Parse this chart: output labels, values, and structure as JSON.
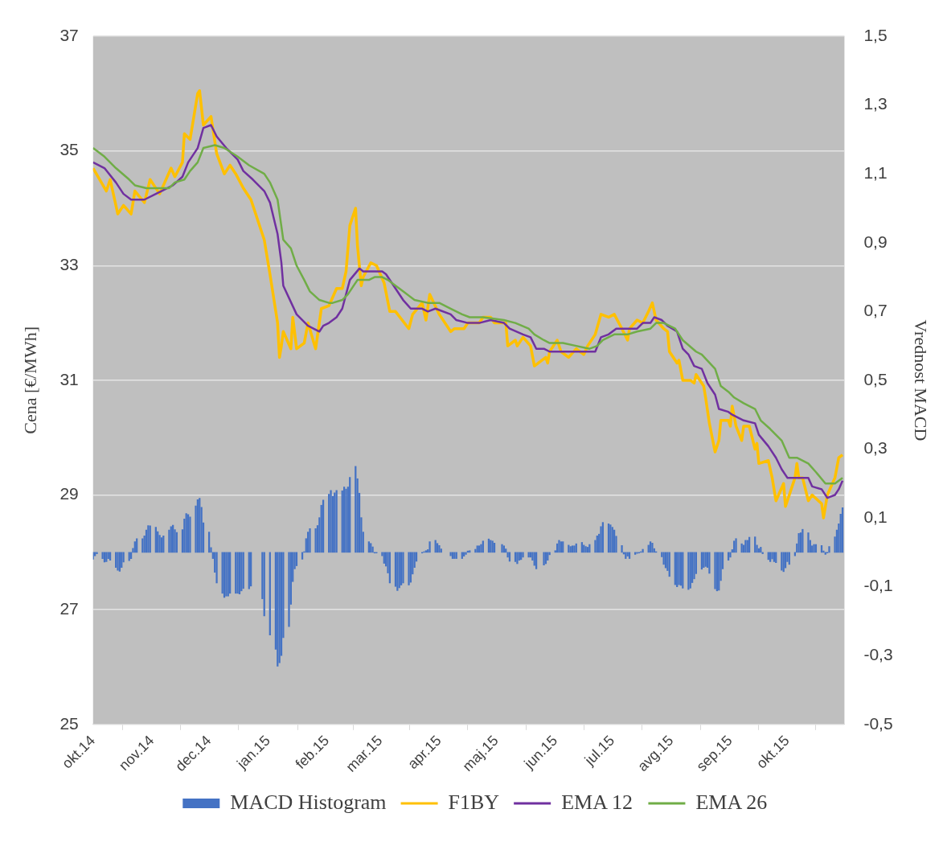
{
  "chart_data": {
    "type": "line",
    "xlabel": null,
    "ylabel": "Cena [€/MWh]",
    "y2label": "Vrednost MACD",
    "xlim": [
      "2014-10-01",
      "2015-10-31"
    ],
    "xticks": [
      {
        "value": "2014-10-01",
        "label": "okt.14"
      },
      {
        "value": "2014-11-01",
        "label": "nov.14"
      },
      {
        "value": "2014-12-01",
        "label": "dec.14"
      },
      {
        "value": "2015-01-01",
        "label": "jan.15"
      },
      {
        "value": "2015-02-01",
        "label": "feb.15"
      },
      {
        "value": "2015-03-01",
        "label": "mar.15"
      },
      {
        "value": "2015-04-01",
        "label": "apr.15"
      },
      {
        "value": "2015-05-01",
        "label": "maj.15"
      },
      {
        "value": "2015-06-01",
        "label": "jun.15"
      },
      {
        "value": "2015-07-01",
        "label": "jul.15"
      },
      {
        "value": "2015-08-01",
        "label": "avg.15"
      },
      {
        "value": "2015-09-01",
        "label": "sep.15"
      },
      {
        "value": "2015-10-01",
        "label": "okt.15"
      }
    ],
    "ylim": [
      25,
      37
    ],
    "yticks": [
      25,
      27,
      29,
      31,
      33,
      35,
      37
    ],
    "y2lim": [
      -0.5,
      1.5
    ],
    "y2ticks": [
      {
        "value": -0.5,
        "label": "-0,5"
      },
      {
        "value": -0.3,
        "label": "-0,3"
      },
      {
        "value": -0.1,
        "label": "-0,1"
      },
      {
        "value": 0.1,
        "label": "0,1"
      },
      {
        "value": 0.3,
        "label": "0,3"
      },
      {
        "value": 0.5,
        "label": "0,5"
      },
      {
        "value": 0.7,
        "label": "0,7"
      },
      {
        "value": 0.9,
        "label": "0,9"
      },
      {
        "value": 1.1,
        "label": "1,1"
      },
      {
        "value": 1.3,
        "label": "1,3"
      },
      {
        "value": 1.5,
        "label": "1,5"
      }
    ],
    "grid": "y",
    "legend": "bottom",
    "series": [
      {
        "name": "MACD Histogram",
        "type": "bar",
        "axis": "y2",
        "color": "#4472c4",
        "x": [
          "2014-10-01",
          "2014-10-02",
          "2014-10-03",
          "2014-10-06",
          "2014-10-07",
          "2014-10-08",
          "2014-10-09",
          "2014-10-10",
          "2014-10-13",
          "2014-10-14",
          "2014-10-15",
          "2014-10-16",
          "2014-10-17",
          "2014-10-20",
          "2014-10-21",
          "2014-10-22",
          "2014-10-23",
          "2014-10-24",
          "2014-10-27",
          "2014-10-28",
          "2014-10-29",
          "2014-10-30",
          "2014-10-31",
          "2014-11-03",
          "2014-11-04",
          "2014-11-05",
          "2014-11-06",
          "2014-11-07",
          "2014-11-10",
          "2014-11-11",
          "2014-11-12",
          "2014-11-13",
          "2014-11-14",
          "2014-11-17",
          "2014-11-18",
          "2014-11-19",
          "2014-11-20",
          "2014-11-21",
          "2014-11-24",
          "2014-11-25",
          "2014-11-26",
          "2014-11-27",
          "2014-11-28",
          "2014-12-01",
          "2014-12-02",
          "2014-12-03",
          "2014-12-04",
          "2014-12-05",
          "2014-12-08",
          "2014-12-09",
          "2014-12-10",
          "2014-12-11",
          "2014-12-12",
          "2014-12-15",
          "2014-12-16",
          "2014-12-17",
          "2014-12-18",
          "2014-12-19",
          "2014-12-22",
          "2014-12-23",
          "2014-12-29",
          "2014-12-30",
          "2015-01-02",
          "2015-01-05",
          "2015-01-06",
          "2015-01-07",
          "2015-01-08",
          "2015-01-09",
          "2015-01-12",
          "2015-01-13",
          "2015-01-14",
          "2015-01-15",
          "2015-01-16",
          "2015-01-19",
          "2015-01-20",
          "2015-01-21",
          "2015-01-22",
          "2015-01-23",
          "2015-01-26",
          "2015-01-27",
          "2015-01-28",
          "2015-01-29",
          "2015-01-30",
          "2015-02-02",
          "2015-02-03",
          "2015-02-04",
          "2015-02-05",
          "2015-02-06",
          "2015-02-09",
          "2015-02-10",
          "2015-02-11",
          "2015-02-12",
          "2015-02-13",
          "2015-02-16",
          "2015-02-17",
          "2015-02-18",
          "2015-02-19",
          "2015-02-20",
          "2015-02-23",
          "2015-02-24",
          "2015-02-25",
          "2015-02-26",
          "2015-02-27",
          "2015-03-02",
          "2015-03-03",
          "2015-03-04",
          "2015-03-05",
          "2015-03-06",
          "2015-03-09",
          "2015-03-10",
          "2015-03-11",
          "2015-03-12",
          "2015-03-13",
          "2015-03-16",
          "2015-03-17",
          "2015-03-18",
          "2015-03-19",
          "2015-03-20",
          "2015-03-23",
          "2015-03-24",
          "2015-03-25",
          "2015-03-26",
          "2015-03-27",
          "2015-03-30",
          "2015-03-31",
          "2015-04-01",
          "2015-04-02",
          "2015-04-07",
          "2015-04-08",
          "2015-04-09",
          "2015-04-10",
          "2015-04-13",
          "2015-04-14",
          "2015-04-15",
          "2015-04-16",
          "2015-04-17",
          "2015-04-20",
          "2015-04-21",
          "2015-04-22",
          "2015-04-23",
          "2015-04-24",
          "2015-04-27",
          "2015-04-28",
          "2015-04-29",
          "2015-04-30",
          "2015-05-04",
          "2015-05-05",
          "2015-05-06",
          "2015-05-07",
          "2015-05-08",
          "2015-05-11",
          "2015-05-12",
          "2015-05-13",
          "2015-05-14",
          "2015-05-15",
          "2015-05-18",
          "2015-05-19",
          "2015-05-20",
          "2015-05-21",
          "2015-05-22",
          "2015-05-26",
          "2015-05-27",
          "2015-05-28",
          "2015-05-29",
          "2015-06-01",
          "2015-06-02",
          "2015-06-03",
          "2015-06-04",
          "2015-06-05",
          "2015-06-08",
          "2015-06-09",
          "2015-06-10",
          "2015-06-11",
          "2015-06-12",
          "2015-06-15",
          "2015-06-16",
          "2015-06-17",
          "2015-06-18",
          "2015-06-19",
          "2015-06-22",
          "2015-06-23",
          "2015-06-24",
          "2015-06-25",
          "2015-06-26",
          "2015-06-29",
          "2015-06-30",
          "2015-07-01",
          "2015-07-02",
          "2015-07-03",
          "2015-07-06",
          "2015-07-07",
          "2015-07-08",
          "2015-07-09",
          "2015-07-10",
          "2015-07-13",
          "2015-07-14",
          "2015-07-15",
          "2015-07-16",
          "2015-07-17",
          "2015-07-20",
          "2015-07-21",
          "2015-07-22",
          "2015-07-23",
          "2015-07-24",
          "2015-07-27",
          "2015-07-28",
          "2015-07-29",
          "2015-07-30",
          "2015-07-31",
          "2015-08-03",
          "2015-08-04",
          "2015-08-05",
          "2015-08-06",
          "2015-08-07",
          "2015-08-10",
          "2015-08-11",
          "2015-08-12",
          "2015-08-13",
          "2015-08-14",
          "2015-08-17",
          "2015-08-18",
          "2015-08-19",
          "2015-08-20",
          "2015-08-21",
          "2015-08-24",
          "2015-08-25",
          "2015-08-26",
          "2015-08-27",
          "2015-08-28",
          "2015-08-31",
          "2015-09-01",
          "2015-09-02",
          "2015-09-03",
          "2015-09-04",
          "2015-09-07",
          "2015-09-08",
          "2015-09-09",
          "2015-09-10",
          "2015-09-11",
          "2015-09-14",
          "2015-09-15",
          "2015-09-16",
          "2015-09-17",
          "2015-09-18",
          "2015-09-21",
          "2015-09-22",
          "2015-09-23",
          "2015-09-24",
          "2015-09-25",
          "2015-09-28",
          "2015-09-29",
          "2015-09-30",
          "2015-10-01",
          "2015-10-02",
          "2015-10-05",
          "2015-10-06",
          "2015-10-07",
          "2015-10-08",
          "2015-10-09",
          "2015-10-12",
          "2015-10-13",
          "2015-10-14",
          "2015-10-15",
          "2015-10-16",
          "2015-10-19",
          "2015-10-20",
          "2015-10-21",
          "2015-10-22",
          "2015-10-23",
          "2015-10-26",
          "2015-10-27",
          "2015-10-28",
          "2015-10-29",
          "2015-10-30"
        ],
        "values": [
          -0.02,
          -0.01,
          -0.004,
          -0.018,
          -0.028,
          -0.027,
          -0.018,
          -0.023,
          -0.044,
          -0.052,
          -0.055,
          -0.044,
          -0.028,
          -0.024,
          -0.018,
          0.012,
          0.031,
          0.04,
          0.04,
          0.048,
          0.065,
          0.078,
          0.077,
          0.073,
          0.06,
          0.05,
          0.043,
          0.048,
          0.065,
          0.075,
          0.079,
          0.066,
          0.058,
          0.066,
          0.097,
          0.113,
          0.11,
          0.103,
          0.135,
          0.153,
          0.157,
          0.131,
          0.086,
          0.059,
          0.014,
          -0.018,
          -0.058,
          -0.089,
          -0.119,
          -0.131,
          -0.127,
          -0.127,
          -0.119,
          -0.119,
          -0.119,
          -0.121,
          -0.112,
          -0.105,
          -0.106,
          -0.098,
          -0.135,
          -0.185,
          -0.24,
          -0.282,
          -0.331,
          -0.321,
          -0.3,
          -0.248,
          -0.216,
          -0.151,
          -0.085,
          -0.048,
          -0.039,
          -0.02,
          0.002,
          0.04,
          0.059,
          0.069,
          0.069,
          0.078,
          0.101,
          0.137,
          0.152,
          0.169,
          0.18,
          0.163,
          0.173,
          0.18,
          0.179,
          0.19,
          0.184,
          0.19,
          0.218,
          0.25,
          0.214,
          0.172,
          0.101,
          0.059,
          0.031,
          0.026,
          0.016,
          -0.002,
          -0.002,
          -0.01,
          -0.032,
          -0.04,
          -0.06,
          -0.089,
          -0.099,
          -0.111,
          -0.103,
          -0.095,
          -0.089,
          -0.095,
          -0.087,
          -0.063,
          -0.044,
          -0.026,
          -0.002,
          0.002,
          0.005,
          0.008,
          0.031,
          0.035,
          0.026,
          0.02,
          0.01,
          -0.01,
          -0.018,
          -0.018,
          -0.018,
          -0.018,
          -0.011,
          -0.006,
          0.004,
          0.005,
          0.009,
          0.019,
          0.019,
          0.023,
          0.033,
          0.039,
          0.035,
          0.033,
          0.027,
          0.023,
          0.019,
          0.01,
          -0.014,
          -0.026,
          -0.027,
          -0.033,
          -0.023,
          -0.021,
          -0.014,
          -0.014,
          -0.014,
          -0.023,
          -0.038,
          -0.048,
          -0.037,
          -0.033,
          -0.023,
          -0.007,
          0.005,
          0.025,
          0.035,
          0.031,
          0.031,
          0.021,
          0.017,
          0.019,
          0.019,
          0.025,
          0.029,
          0.021,
          0.017,
          0.015,
          0.023,
          0.035,
          0.048,
          0.053,
          0.075,
          0.087,
          0.083,
          0.08,
          0.073,
          0.065,
          0.047,
          0.02,
          -0.005,
          -0.018,
          -0.011,
          -0.018,
          -0.006,
          -0.003,
          -0.002,
          0.002,
          0.009,
          0.021,
          0.031,
          0.027,
          0.011,
          0.002,
          -0.013,
          -0.035,
          -0.045,
          -0.053,
          -0.07,
          -0.094,
          -0.1,
          -0.094,
          -0.096,
          -0.104,
          -0.108,
          -0.104,
          -0.088,
          -0.077,
          -0.062,
          -0.049,
          -0.044,
          -0.041,
          -0.044,
          -0.061,
          -0.106,
          -0.112,
          -0.11,
          -0.082,
          -0.048,
          -0.023,
          -0.014,
          0.008,
          0.033,
          0.04,
          0.025,
          0.021,
          0.035,
          0.035,
          0.044,
          0.045,
          0.021,
          0.011,
          0.015,
          -0.004,
          -0.021,
          -0.027,
          -0.019,
          -0.027,
          -0.03,
          -0.052,
          -0.056,
          -0.045,
          -0.027,
          -0.035,
          -0.01,
          0.025,
          0.055,
          0.057,
          0.067,
          0.057,
          0.035,
          0.019,
          0.023,
          0.023,
          0.02,
          0.004,
          -0.006,
          -0.002,
          0.017,
          0.045,
          0.065,
          0.083,
          0.111,
          0.13
        ]
      },
      {
        "name": "F1BY",
        "color": "#ffc000",
        "x": [
          "2014-10-01",
          "2014-10-08",
          "2014-10-10",
          "2014-10-14",
          "2014-10-17",
          "2014-10-21",
          "2014-10-23",
          "2014-10-28",
          "2014-10-31",
          "2014-11-05",
          "2014-11-11",
          "2014-11-13",
          "2014-11-17",
          "2014-11-18",
          "2014-11-21",
          "2014-11-25",
          "2014-11-26",
          "2014-11-28",
          "2014-12-02",
          "2014-12-05",
          "2014-12-09",
          "2014-12-12",
          "2014-12-15",
          "2014-12-19",
          "2014-12-23",
          "2014-12-30",
          "2015-01-02",
          "2015-01-06",
          "2015-01-07",
          "2015-01-08",
          "2015-01-09",
          "2015-01-13",
          "2015-01-14",
          "2015-01-16",
          "2015-01-20",
          "2015-01-22",
          "2015-01-26",
          "2015-01-29",
          "2015-02-02",
          "2015-02-06",
          "2015-02-09",
          "2015-02-11",
          "2015-02-13",
          "2015-02-16",
          "2015-02-17",
          "2015-02-19",
          "2015-02-20",
          "2015-02-24",
          "2015-02-27",
          "2015-03-03",
          "2015-03-06",
          "2015-03-09",
          "2015-03-16",
          "2015-03-18",
          "2015-03-23",
          "2015-03-25",
          "2015-03-27",
          "2015-04-01",
          "2015-04-07",
          "2015-04-09",
          "2015-04-14",
          "2015-04-16",
          "2015-04-22",
          "2015-04-24",
          "2015-04-28",
          "2015-04-30",
          "2015-05-06",
          "2015-05-07",
          "2015-05-11",
          "2015-05-12",
          "2015-05-15",
          "2015-05-19",
          "2015-05-21",
          "2015-05-27",
          "2015-05-28",
          "2015-05-29",
          "2015-06-02",
          "2015-06-04",
          "2015-06-08",
          "2015-06-12",
          "2015-06-16",
          "2015-06-18",
          "2015-06-22",
          "2015-06-25",
          "2015-06-29",
          "2015-07-02",
          "2015-07-06",
          "2015-07-09",
          "2015-07-10",
          "2015-07-14",
          "2015-07-17",
          "2015-07-20",
          "2015-07-22",
          "2015-07-24",
          "2015-07-28",
          "2015-07-30",
          "2015-07-31",
          "2015-08-04",
          "2015-08-05",
          "2015-08-07",
          "2015-08-11",
          "2015-08-13",
          "2015-08-14",
          "2015-08-18",
          "2015-08-19",
          "2015-08-21",
          "2015-08-24",
          "2015-08-26",
          "2015-08-27",
          "2015-08-31",
          "2015-09-01",
          "2015-09-02",
          "2015-09-04",
          "2015-09-07",
          "2015-09-08",
          "2015-09-11",
          "2015-09-14",
          "2015-09-15",
          "2015-09-16",
          "2015-09-21",
          "2015-09-23",
          "2015-09-25",
          "2015-09-29",
          "2015-09-30",
          "2015-10-05",
          "2015-10-06",
          "2015-10-07",
          "2015-10-09",
          "2015-10-12",
          "2015-10-14",
          "2015-10-19",
          "2015-10-20",
          "2015-10-21",
          "2015-10-22",
          "2015-10-26",
          "2015-10-28",
          "2015-10-30"
        ],
        "values": [
          34.7,
          34.3,
          34.5,
          33.9,
          34.05,
          33.9,
          34.3,
          34.1,
          34.5,
          34.25,
          34.7,
          34.55,
          34.8,
          35.3,
          35.2,
          36.0,
          36.05,
          35.45,
          35.6,
          34.95,
          34.6,
          34.75,
          34.6,
          34.35,
          34.15,
          33.45,
          32.85,
          32.0,
          31.4,
          31.6,
          31.85,
          31.55,
          32.1,
          31.55,
          31.65,
          32.0,
          31.55,
          32.25,
          32.3,
          32.6,
          32.6,
          32.9,
          33.7,
          34.0,
          33.35,
          32.65,
          32.8,
          33.05,
          33.0,
          32.7,
          32.2,
          32.2,
          31.9,
          32.15,
          32.35,
          32.05,
          32.5,
          32.15,
          31.85,
          31.9,
          31.9,
          32.0,
          32.0,
          32.1,
          32.1,
          32.0,
          32.0,
          31.6,
          31.7,
          31.6,
          31.75,
          31.6,
          31.25,
          31.4,
          31.3,
          31.5,
          31.7,
          31.5,
          31.4,
          31.55,
          31.45,
          31.6,
          31.8,
          32.15,
          32.1,
          32.15,
          31.9,
          31.7,
          31.9,
          32.05,
          32.0,
          32.2,
          32.35,
          32.05,
          31.9,
          31.85,
          31.5,
          31.3,
          31.35,
          31.0,
          31.0,
          30.95,
          31.1,
          30.9,
          30.7,
          30.25,
          29.75,
          29.95,
          30.3,
          30.3,
          30.2,
          30.55,
          30.2,
          29.95,
          30.2,
          30.2,
          29.8,
          29.9,
          29.55,
          29.6,
          29.3,
          28.9,
          29.2,
          28.8,
          29.3,
          29.55,
          29.3,
          29.3,
          28.9,
          29.0,
          28.85,
          28.6,
          28.8,
          29.0,
          29.3,
          29.65,
          29.7
        ]
      },
      {
        "name": "EMA 12",
        "color": "#7030a0",
        "x": [
          "2014-10-01",
          "2014-10-07",
          "2014-10-13",
          "2014-10-17",
          "2014-10-21",
          "2014-10-28",
          "2014-11-03",
          "2014-11-06",
          "2014-11-12",
          "2014-11-17",
          "2014-11-20",
          "2014-11-25",
          "2014-11-28",
          "2014-12-02",
          "2014-12-05",
          "2014-12-10",
          "2014-12-16",
          "2014-12-19",
          "2014-12-24",
          "2014-12-30",
          "2015-01-02",
          "2015-01-06",
          "2015-01-08",
          "2015-01-09",
          "2015-01-16",
          "2015-01-22",
          "2015-01-28",
          "2015-01-30",
          "2015-02-02",
          "2015-02-06",
          "2015-02-09",
          "2015-02-13",
          "2015-02-18",
          "2015-02-20",
          "2015-02-23",
          "2015-03-02",
          "2015-03-04",
          "2015-03-09",
          "2015-03-13",
          "2015-03-17",
          "2015-03-23",
          "2015-03-26",
          "2015-03-30",
          "2015-04-07",
          "2015-04-10",
          "2015-04-16",
          "2015-04-22",
          "2015-04-28",
          "2015-05-05",
          "2015-05-08",
          "2015-05-15",
          "2015-05-19",
          "2015-05-22",
          "2015-05-26",
          "2015-05-29",
          "2015-06-03",
          "2015-06-09",
          "2015-06-15",
          "2015-06-22",
          "2015-06-25",
          "2015-06-29",
          "2015-07-03",
          "2015-07-07",
          "2015-07-10",
          "2015-07-14",
          "2015-07-17",
          "2015-07-21",
          "2015-07-23",
          "2015-07-27",
          "2015-07-30",
          "2015-08-04",
          "2015-08-07",
          "2015-08-10",
          "2015-08-13",
          "2015-08-17",
          "2015-08-20",
          "2015-08-24",
          "2015-08-26",
          "2015-08-31",
          "2015-09-02",
          "2015-09-08",
          "2015-09-14",
          "2015-09-16",
          "2015-09-21",
          "2015-09-25",
          "2015-09-28",
          "2015-10-01",
          "2015-10-05",
          "2015-10-08",
          "2015-10-12",
          "2015-10-14",
          "2015-10-19",
          "2015-10-22",
          "2015-10-26",
          "2015-10-28",
          "2015-10-30"
        ],
        "values": [
          34.8,
          34.7,
          34.45,
          34.25,
          34.15,
          34.15,
          34.25,
          34.3,
          34.4,
          34.55,
          34.8,
          35.05,
          35.4,
          35.45,
          35.25,
          35.05,
          34.85,
          34.65,
          34.5,
          34.3,
          34.1,
          33.55,
          33.05,
          32.65,
          32.15,
          31.95,
          31.85,
          31.95,
          32.0,
          32.1,
          32.25,
          32.75,
          32.95,
          32.9,
          32.9,
          32.9,
          32.85,
          32.6,
          32.4,
          32.25,
          32.25,
          32.2,
          32.25,
          32.15,
          32.05,
          32.0,
          32.0,
          32.05,
          32.0,
          31.9,
          31.8,
          31.75,
          31.55,
          31.55,
          31.5,
          31.5,
          31.5,
          31.5,
          31.5,
          31.75,
          31.8,
          31.9,
          31.9,
          31.9,
          31.9,
          32.0,
          32.0,
          32.1,
          32.05,
          31.95,
          31.85,
          31.55,
          31.45,
          31.25,
          31.2,
          30.95,
          30.75,
          30.5,
          30.45,
          30.4,
          30.3,
          30.25,
          30.05,
          29.85,
          29.65,
          29.45,
          29.3,
          29.3,
          29.3,
          29.3,
          29.15,
          29.1,
          28.95,
          29.0,
          29.1,
          29.25
        ]
      },
      {
        "name": "EMA 26",
        "color": "#70ad47",
        "x": [
          "2014-10-01",
          "2014-10-07",
          "2014-10-13",
          "2014-10-20",
          "2014-10-23",
          "2014-10-29",
          "2014-11-03",
          "2014-11-10",
          "2014-11-13",
          "2014-11-18",
          "2014-11-21",
          "2014-11-25",
          "2014-11-28",
          "2014-12-04",
          "2014-12-09",
          "2014-12-16",
          "2014-12-22",
          "2014-12-30",
          "2015-01-02",
          "2015-01-06",
          "2015-01-09",
          "2015-01-13",
          "2015-01-16",
          "2015-01-20",
          "2015-01-23",
          "2015-01-28",
          "2015-02-02",
          "2015-02-04",
          "2015-02-09",
          "2015-02-12",
          "2015-02-17",
          "2015-02-23",
          "2015-02-26",
          "2015-03-02",
          "2015-03-05",
          "2015-03-09",
          "2015-03-13",
          "2015-03-19",
          "2015-03-26",
          "2015-04-01",
          "2015-04-07",
          "2015-04-13",
          "2015-04-17",
          "2015-04-24",
          "2015-05-05",
          "2015-05-11",
          "2015-05-18",
          "2015-05-21",
          "2015-05-26",
          "2015-05-29",
          "2015-06-05",
          "2015-06-12",
          "2015-06-19",
          "2015-06-23",
          "2015-06-26",
          "2015-07-02",
          "2015-07-09",
          "2015-07-14",
          "2015-07-21",
          "2015-07-24",
          "2015-07-28",
          "2015-08-03",
          "2015-08-07",
          "2015-08-14",
          "2015-08-17",
          "2015-08-24",
          "2015-08-27",
          "2015-08-31",
          "2015-09-03",
          "2015-09-08",
          "2015-09-14",
          "2015-09-17",
          "2015-09-22",
          "2015-09-28",
          "2015-10-02",
          "2015-10-06",
          "2015-10-12",
          "2015-10-16",
          "2015-10-21",
          "2015-10-26",
          "2015-10-30"
        ],
        "values": [
          35.05,
          34.9,
          34.7,
          34.5,
          34.4,
          34.35,
          34.35,
          34.35,
          34.45,
          34.5,
          34.65,
          34.8,
          35.05,
          35.1,
          35.05,
          34.9,
          34.75,
          34.6,
          34.45,
          34.15,
          33.45,
          33.3,
          33.0,
          32.75,
          32.55,
          32.4,
          32.35,
          32.35,
          32.4,
          32.5,
          32.75,
          32.75,
          32.8,
          32.8,
          32.75,
          32.65,
          32.55,
          32.4,
          32.35,
          32.35,
          32.25,
          32.15,
          32.1,
          32.1,
          32.05,
          32.0,
          31.9,
          31.8,
          31.7,
          31.65,
          31.65,
          31.6,
          31.55,
          31.6,
          31.7,
          31.8,
          31.8,
          31.85,
          31.9,
          32.0,
          32.0,
          31.9,
          31.7,
          31.5,
          31.45,
          31.2,
          30.9,
          30.8,
          30.7,
          30.6,
          30.5,
          30.3,
          30.15,
          29.95,
          29.65,
          29.65,
          29.55,
          29.4,
          29.2,
          29.2,
          29.3
        ]
      }
    ]
  }
}
